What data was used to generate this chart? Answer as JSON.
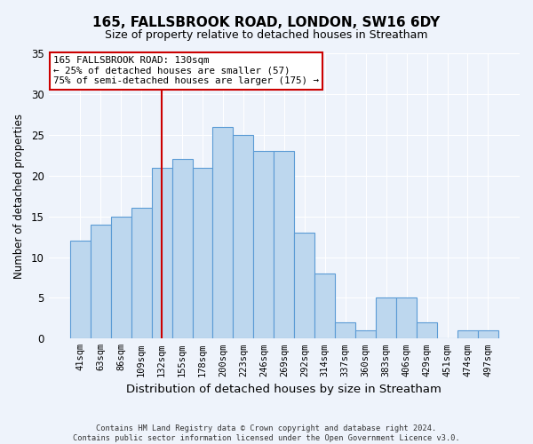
{
  "title": "165, FALLSBROOK ROAD, LONDON, SW16 6DY",
  "subtitle": "Size of property relative to detached houses in Streatham",
  "xlabel": "Distribution of detached houses by size in Streatham",
  "ylabel": "Number of detached properties",
  "footer_line1": "Contains HM Land Registry data © Crown copyright and database right 2024.",
  "footer_line2": "Contains public sector information licensed under the Open Government Licence v3.0.",
  "categories": [
    "41sqm",
    "63sqm",
    "86sqm",
    "109sqm",
    "132sqm",
    "155sqm",
    "178sqm",
    "200sqm",
    "223sqm",
    "246sqm",
    "269sqm",
    "292sqm",
    "314sqm",
    "337sqm",
    "360sqm",
    "383sqm",
    "406sqm",
    "429sqm",
    "451sqm",
    "474sqm",
    "497sqm"
  ],
  "values": [
    12,
    14,
    15,
    16,
    21,
    22,
    21,
    26,
    25,
    23,
    23,
    13,
    8,
    2,
    1,
    5,
    5,
    2,
    0,
    1,
    1
  ],
  "bar_color": "#BDD7EE",
  "bar_edge_color": "#5B9BD5",
  "background_color": "#EEF3FB",
  "grid_color": "#FFFFFF",
  "vline_x": 4,
  "vline_color": "#CC0000",
  "annotation_text": "165 FALLSBROOK ROAD: 130sqm\n← 25% of detached houses are smaller (57)\n75% of semi-detached houses are larger (175) →",
  "annotation_box_color": "#FFFFFF",
  "annotation_box_edge": "#CC0000",
  "ylim": [
    0,
    35
  ],
  "yticks": [
    0,
    5,
    10,
    15,
    20,
    25,
    30,
    35
  ]
}
